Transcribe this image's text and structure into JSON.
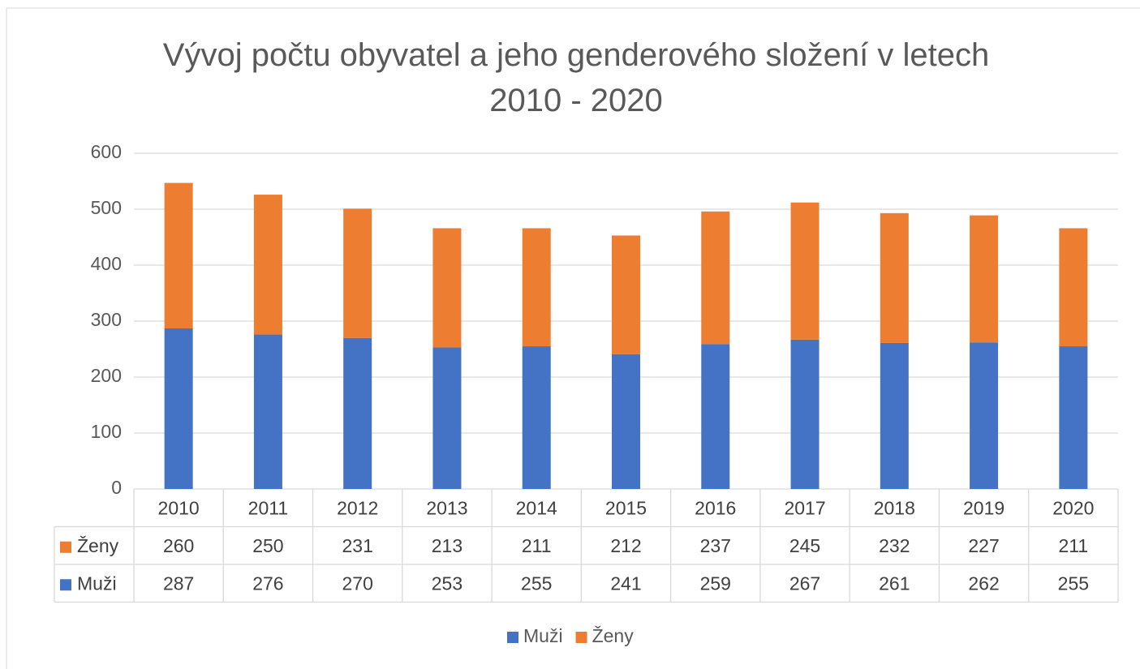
{
  "chart_data": {
    "type": "bar",
    "stacked": true,
    "title": "Vývoj počtu obyvatel a jeho genderového složení v letech 2010 - 2020",
    "categories": [
      "2010",
      "2011",
      "2012",
      "2013",
      "2014",
      "2015",
      "2016",
      "2017",
      "2018",
      "2019",
      "2020"
    ],
    "series": [
      {
        "name": "Muži",
        "color": "#4472c4",
        "values": [
          287,
          276,
          270,
          253,
          255,
          241,
          259,
          267,
          261,
          262,
          255
        ]
      },
      {
        "name": "Ženy",
        "color": "#ed7d31",
        "values": [
          260,
          250,
          231,
          213,
          211,
          212,
          237,
          245,
          232,
          227,
          211
        ]
      }
    ],
    "ylim": [
      0,
      600
    ],
    "yticks": [
      0,
      100,
      200,
      300,
      400,
      500,
      600
    ],
    "grid": true,
    "legend": "bottom",
    "data_table": true
  }
}
